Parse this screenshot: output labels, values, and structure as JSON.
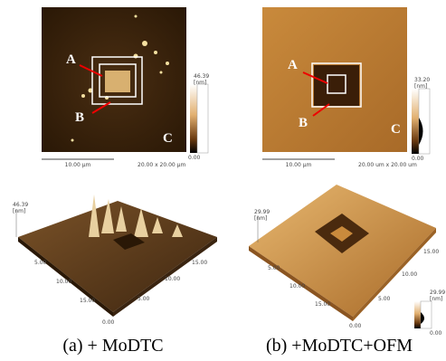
{
  "panels": [
    {
      "image_2d": {
        "marks": [
          "A",
          "B",
          "C"
        ],
        "scale_max": "46.39",
        "scale_unit": "[nm]",
        "scale_min": "0.00",
        "scale_bar": "10.00 µm",
        "scan_size": "20.00 x 20.00 µm"
      },
      "image_3d": {
        "z_max": "46.39",
        "z_unit": "[nm]",
        "axis_left": [
          "5.00",
          "10.00",
          "15.00"
        ],
        "axis_right": [
          "0.00",
          "5.00",
          "10.00",
          "15.00"
        ]
      },
      "caption": "(a) + MoDTC"
    },
    {
      "image_2d": {
        "marks": [
          "A",
          "B",
          "C"
        ],
        "scale_max": "33.20",
        "scale_unit": "[nm]",
        "scale_min": "0.00",
        "scale_bar": "10.00 µm",
        "scan_size": "20.00 um x 20.00 um"
      },
      "image_3d": {
        "z_max": "29.99",
        "z_unit": "[nm]",
        "axis_left": [
          "5.00",
          "10.00",
          "15.00"
        ],
        "axis_right": [
          "0.00",
          "5.00",
          "10.00",
          "15.00"
        ],
        "colorbar_max": "29.99",
        "colorbar_unit": "[nm]",
        "colorbar_min": "0.00"
      },
      "caption": "(b) +MoDTC+OFM"
    }
  ]
}
